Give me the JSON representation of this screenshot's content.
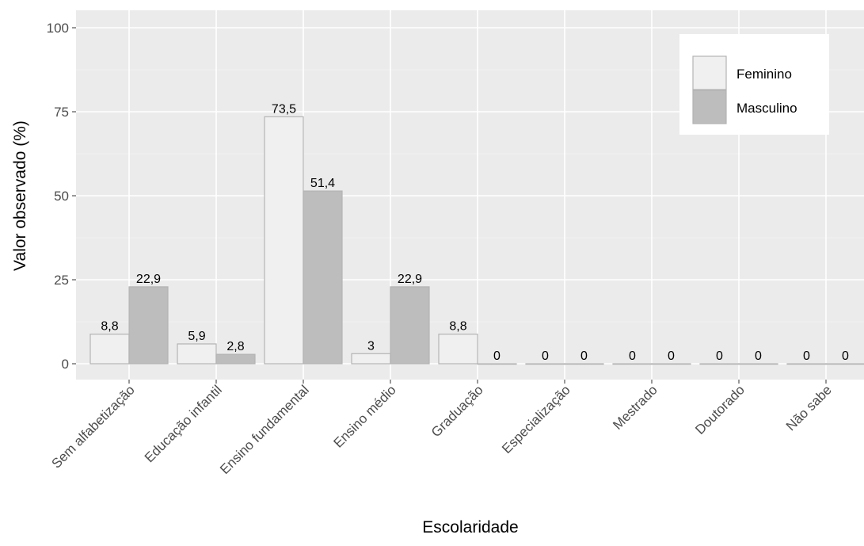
{
  "chart_data": {
    "type": "bar",
    "title": "",
    "xlabel": "Escolaridade",
    "ylabel": "Valor observado (%)",
    "ylim": [
      0,
      100
    ],
    "yticks": [
      0,
      25,
      50,
      75,
      100
    ],
    "ytick_labels": [
      "0",
      "25",
      "50",
      "75",
      "100"
    ],
    "grid": true,
    "legend_position": "top-right",
    "categories": [
      "Sem alfabetização",
      "Educação infantil",
      "Ensino fundamental",
      "Ensino médio",
      "Graduação",
      "Especialização",
      "Mestrado",
      "Doutorado",
      "Não sabe"
    ],
    "series": [
      {
        "name": "Feminino",
        "color": "#f0f0f0",
        "values": [
          8.8,
          5.9,
          73.5,
          3,
          8.8,
          0,
          0,
          0,
          0
        ],
        "labels": [
          "8,8",
          "5,9",
          "73,5",
          "3",
          "8,8",
          "0",
          "0",
          "0",
          "0"
        ]
      },
      {
        "name": "Masculino",
        "color": "#bdbdbd",
        "values": [
          22.9,
          2.8,
          51.4,
          22.9,
          0,
          0,
          0,
          0,
          0
        ],
        "labels": [
          "22,9",
          "2,8",
          "51,4",
          "22,9",
          "0",
          "0",
          "0",
          "0",
          "0"
        ]
      }
    ]
  }
}
